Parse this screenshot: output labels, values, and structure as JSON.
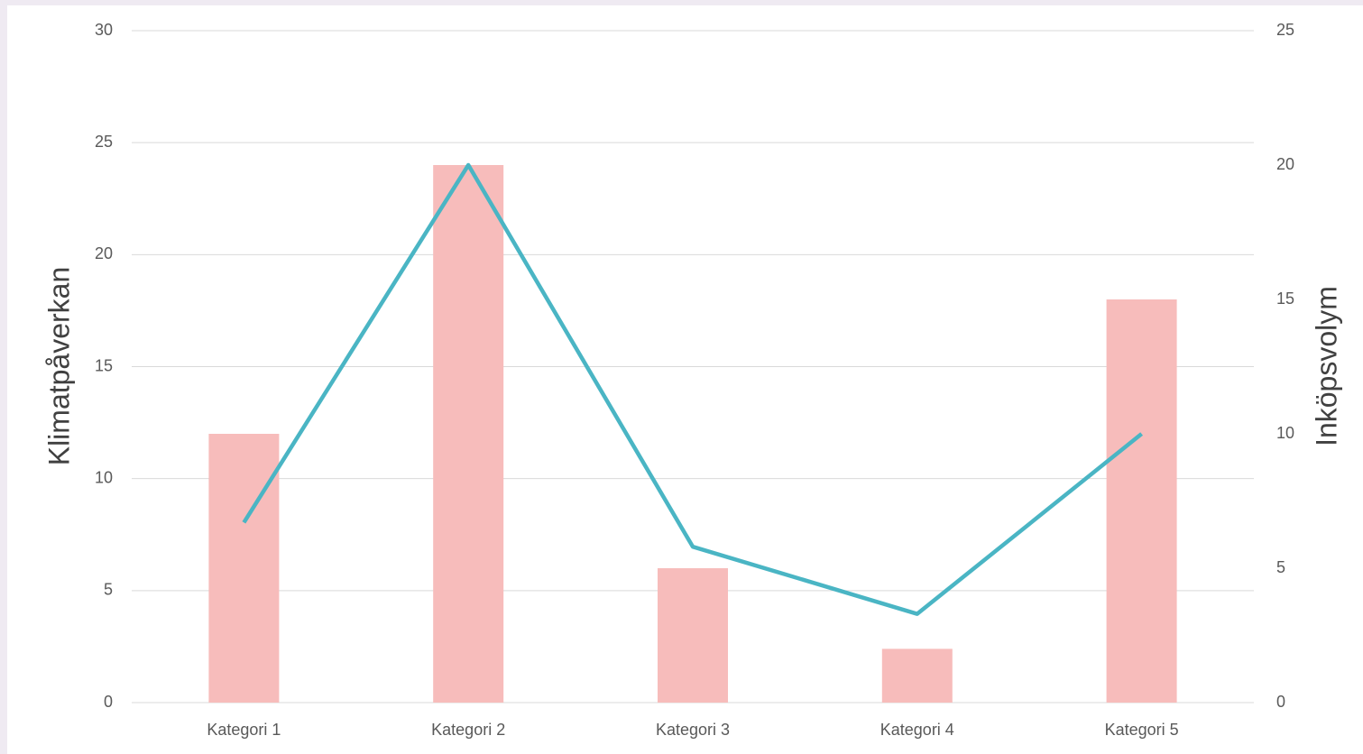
{
  "chart_data": {
    "type": "combo",
    "categories": [
      "Kategori 1",
      "Kategori 2",
      "Kategori 3",
      "Kategori 4",
      "Kategori 5"
    ],
    "y_label": "Klimatpåverkan",
    "y2_label": "Inköpsvolym",
    "series": [
      {
        "type": "bar",
        "color": "#f7bcbb",
        "values": [
          12,
          24,
          6,
          2.4,
          18
        ]
      },
      {
        "type": "line",
        "axis": "y2",
        "color": "#4ab5c4",
        "values": [
          6.7,
          20,
          5.8,
          3.3,
          10
        ]
      }
    ],
    "ylim": [
      0,
      30
    ],
    "yticks": [
      0,
      5,
      10,
      15,
      20,
      25,
      30
    ],
    "y2lim": [
      0,
      25
    ],
    "y2ticks": [
      0,
      5,
      10,
      15,
      20,
      25
    ],
    "grid": true
  }
}
